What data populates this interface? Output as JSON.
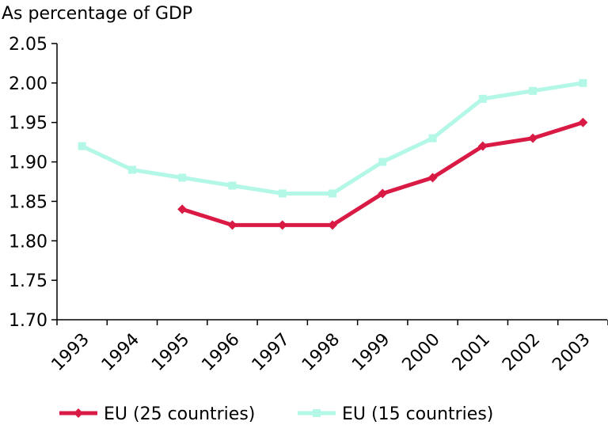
{
  "chart_data": {
    "type": "line",
    "title": "",
    "ylabel": "As percentage of GDP",
    "xlabel": "",
    "categories": [
      "1993",
      "1994",
      "1995",
      "1996",
      "1997",
      "1998",
      "1999",
      "2000",
      "2001",
      "2002",
      "2003"
    ],
    "ylim": [
      1.7,
      2.05
    ],
    "yticks": [
      "1.70",
      "1.75",
      "1.80",
      "1.85",
      "1.90",
      "1.95",
      "2.00",
      "2.05"
    ],
    "grid": false,
    "legend_position": "bottom",
    "series": [
      {
        "name": "EU (25 countries)",
        "color": "#d91a44",
        "marker": "diamond",
        "values": [
          null,
          null,
          1.84,
          1.82,
          1.82,
          1.82,
          1.86,
          1.88,
          1.92,
          1.93,
          1.95
        ]
      },
      {
        "name": "EU (15 countries)",
        "color": "#b3f7e6",
        "marker": "square",
        "values": [
          1.92,
          1.89,
          1.88,
          1.87,
          1.86,
          1.86,
          1.9,
          1.93,
          1.98,
          1.99,
          2.0
        ]
      }
    ]
  }
}
